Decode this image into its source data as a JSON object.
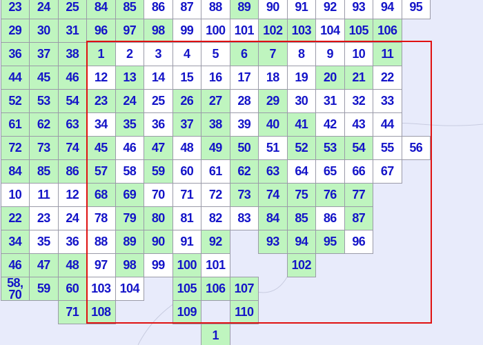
{
  "grid": {
    "rows": [
      [
        [
          "23",
          "#bff5bf"
        ],
        [
          "24",
          "#bff5bf"
        ],
        [
          "25",
          "#bff5bf"
        ],
        [
          "84",
          "#bff5bf"
        ],
        [
          "85",
          "#bff5bf"
        ],
        [
          "86",
          "#ffffff"
        ],
        [
          "87",
          "#ffffff"
        ],
        [
          "88",
          "#ffffff"
        ],
        [
          "89",
          "#bff5bf"
        ],
        [
          "90",
          "#ffffff"
        ],
        [
          "91",
          "#ffffff"
        ],
        [
          "92",
          "#ffffff"
        ],
        [
          "93",
          "#ffffff"
        ],
        [
          "94",
          "#ffffff"
        ],
        [
          "95",
          "#ffffff"
        ]
      ],
      [
        [
          "29",
          "#bff5bf"
        ],
        [
          "30",
          "#bff5bf"
        ],
        [
          "31",
          "#bff5bf"
        ],
        [
          "96",
          "#bff5bf"
        ],
        [
          "97",
          "#bff5bf"
        ],
        [
          "98",
          "#bff5bf"
        ],
        [
          "99",
          "#ffffff"
        ],
        [
          "100",
          "#ffffff"
        ],
        [
          "101",
          "#ffffff"
        ],
        [
          "102",
          "#bff5bf"
        ],
        [
          "103",
          "#bff5bf"
        ],
        [
          "104",
          "#ffffff"
        ],
        [
          "105",
          "#bff5bf"
        ],
        [
          "106",
          "#bff5bf"
        ]
      ],
      [
        [
          "36",
          "#bff5bf"
        ],
        [
          "37",
          "#bff5bf"
        ],
        [
          "38",
          "#bff5bf"
        ],
        [
          "1",
          "#bff5bf"
        ],
        [
          "2",
          "#ffffff"
        ],
        [
          "3",
          "#ffffff"
        ],
        [
          "4",
          "#ffffff"
        ],
        [
          "5",
          "#ffffff"
        ],
        [
          "6",
          "#bff5bf"
        ],
        [
          "7",
          "#bff5bf"
        ],
        [
          "8",
          "#ffffff"
        ],
        [
          "9",
          "#ffffff"
        ],
        [
          "10",
          "#ffffff"
        ],
        [
          "11",
          "#bff5bf"
        ]
      ],
      [
        [
          "44",
          "#bff5bf"
        ],
        [
          "45",
          "#bff5bf"
        ],
        [
          "46",
          "#bff5bf"
        ],
        [
          "12",
          "#ffffff"
        ],
        [
          "13",
          "#bff5bf"
        ],
        [
          "14",
          "#ffffff"
        ],
        [
          "15",
          "#ffffff"
        ],
        [
          "16",
          "#ffffff"
        ],
        [
          "17",
          "#ffffff"
        ],
        [
          "18",
          "#ffffff"
        ],
        [
          "19",
          "#ffffff"
        ],
        [
          "20",
          "#bff5bf"
        ],
        [
          "21",
          "#bff5bf"
        ],
        [
          "22",
          "#ffffff"
        ]
      ],
      [
        [
          "52",
          "#bff5bf"
        ],
        [
          "53",
          "#bff5bf"
        ],
        [
          "54",
          "#bff5bf"
        ],
        [
          "23",
          "#bff5bf"
        ],
        [
          "24",
          "#bff5bf"
        ],
        [
          "25",
          "#ffffff"
        ],
        [
          "26",
          "#bff5bf"
        ],
        [
          "27",
          "#bff5bf"
        ],
        [
          "28",
          "#ffffff"
        ],
        [
          "29",
          "#bff5bf"
        ],
        [
          "30",
          "#ffffff"
        ],
        [
          "31",
          "#ffffff"
        ],
        [
          "32",
          "#ffffff"
        ],
        [
          "33",
          "#ffffff"
        ]
      ],
      [
        [
          "61",
          "#bff5bf"
        ],
        [
          "62",
          "#bff5bf"
        ],
        [
          "63",
          "#bff5bf"
        ],
        [
          "34",
          "#ffffff"
        ],
        [
          "35",
          "#bff5bf"
        ],
        [
          "36",
          "#ffffff"
        ],
        [
          "37",
          "#bff5bf"
        ],
        [
          "38",
          "#bff5bf"
        ],
        [
          "39",
          "#ffffff"
        ],
        [
          "40",
          "#bff5bf"
        ],
        [
          "41",
          "#bff5bf"
        ],
        [
          "42",
          "#ffffff"
        ],
        [
          "43",
          "#ffffff"
        ],
        [
          "44",
          "#ffffff"
        ]
      ],
      [
        [
          "72",
          "#bff5bf"
        ],
        [
          "73",
          "#bff5bf"
        ],
        [
          "74",
          "#bff5bf"
        ],
        [
          "45",
          "#bff5bf"
        ],
        [
          "46",
          "#ffffff"
        ],
        [
          "47",
          "#bff5bf"
        ],
        [
          "48",
          "#ffffff"
        ],
        [
          "49",
          "#bff5bf"
        ],
        [
          "50",
          "#bff5bf"
        ],
        [
          "51",
          "#ffffff"
        ],
        [
          "52",
          "#bff5bf"
        ],
        [
          "53",
          "#bff5bf"
        ],
        [
          "54",
          "#bff5bf"
        ],
        [
          "55",
          "#ffffff"
        ],
        [
          "56",
          "#ffffff"
        ]
      ],
      [
        [
          "84",
          "#bff5bf"
        ],
        [
          "85",
          "#bff5bf"
        ],
        [
          "86",
          "#bff5bf"
        ],
        [
          "57",
          "#bff5bf"
        ],
        [
          "58",
          "#ffffff"
        ],
        [
          "59",
          "#bff5bf"
        ],
        [
          "60",
          "#ffffff"
        ],
        [
          "61",
          "#ffffff"
        ],
        [
          "62",
          "#bff5bf"
        ],
        [
          "63",
          "#bff5bf"
        ],
        [
          "64",
          "#ffffff"
        ],
        [
          "65",
          "#ffffff"
        ],
        [
          "66",
          "#ffffff"
        ],
        [
          "67",
          "#ffffff"
        ]
      ],
      [
        [
          "10",
          "#ffffff"
        ],
        [
          "11",
          "#ffffff"
        ],
        [
          "12",
          "#ffffff"
        ],
        [
          "68",
          "#bff5bf"
        ],
        [
          "69",
          "#bff5bf"
        ],
        [
          "70",
          "#ffffff"
        ],
        [
          "71",
          "#ffffff"
        ],
        [
          "72",
          "#ffffff"
        ],
        [
          "73",
          "#bff5bf"
        ],
        [
          "74",
          "#bff5bf"
        ],
        [
          "75",
          "#bff5bf"
        ],
        [
          "76",
          "#bff5bf"
        ],
        [
          "77",
          "#bff5bf"
        ]
      ],
      [
        [
          "22",
          "#bff5bf"
        ],
        [
          "23",
          "#ffffff"
        ],
        [
          "24",
          "#ffffff"
        ],
        [
          "78",
          "#ffffff"
        ],
        [
          "79",
          "#bff5bf"
        ],
        [
          "80",
          "#bff5bf"
        ],
        [
          "81",
          "#ffffff"
        ],
        [
          "82",
          "#ffffff"
        ],
        [
          "83",
          "#ffffff"
        ],
        [
          "84",
          "#bff5bf"
        ],
        [
          "85",
          "#bff5bf"
        ],
        [
          "86",
          "#ffffff"
        ],
        [
          "87",
          "#bff5bf"
        ]
      ],
      [
        [
          "34",
          "#bff5bf"
        ],
        [
          "35",
          "#ffffff"
        ],
        [
          "36",
          "#ffffff"
        ],
        [
          "88",
          "#ffffff"
        ],
        [
          "89",
          "#bff5bf"
        ],
        [
          "90",
          "#bff5bf"
        ],
        [
          "91",
          "#ffffff"
        ],
        [
          "92",
          "#bff5bf"
        ],
        null,
        [
          "93",
          "#bff5bf"
        ],
        [
          "94",
          "#bff5bf"
        ],
        [
          "95",
          "#bff5bf"
        ],
        [
          "96",
          "#ffffff"
        ]
      ],
      [
        [
          "46",
          "#bff5bf"
        ],
        [
          "47",
          "#bff5bf"
        ],
        [
          "48",
          "#bff5bf"
        ],
        [
          "97",
          "#ffffff"
        ],
        [
          "98",
          "#bff5bf"
        ],
        [
          "99",
          "#ffffff"
        ],
        [
          "100",
          "#bff5bf"
        ],
        [
          "101",
          "#ffffff"
        ],
        null,
        null,
        [
          "102",
          "#bff5bf"
        ]
      ],
      [
        [
          "58, 70",
          "#bff5bf"
        ],
        [
          "59",
          "#bff5bf"
        ],
        [
          "60",
          "#bff5bf"
        ],
        [
          "103",
          "#ffffff"
        ],
        [
          "104",
          "#ffffff"
        ],
        null,
        [
          "105",
          "#bff5bf"
        ],
        [
          "106",
          "#bff5bf"
        ],
        [
          "107",
          "#bff5bf"
        ]
      ],
      [
        null,
        null,
        [
          "71",
          "#bff5bf"
        ],
        [
          "108",
          "#bff5bf"
        ],
        null,
        null,
        [
          "109",
          "#bff5bf"
        ],
        null,
        [
          "110",
          "#bff5bf"
        ]
      ],
      [
        null,
        null,
        null,
        null,
        null,
        null,
        null,
        [
          "1",
          "#bff5bf"
        ]
      ]
    ]
  }
}
